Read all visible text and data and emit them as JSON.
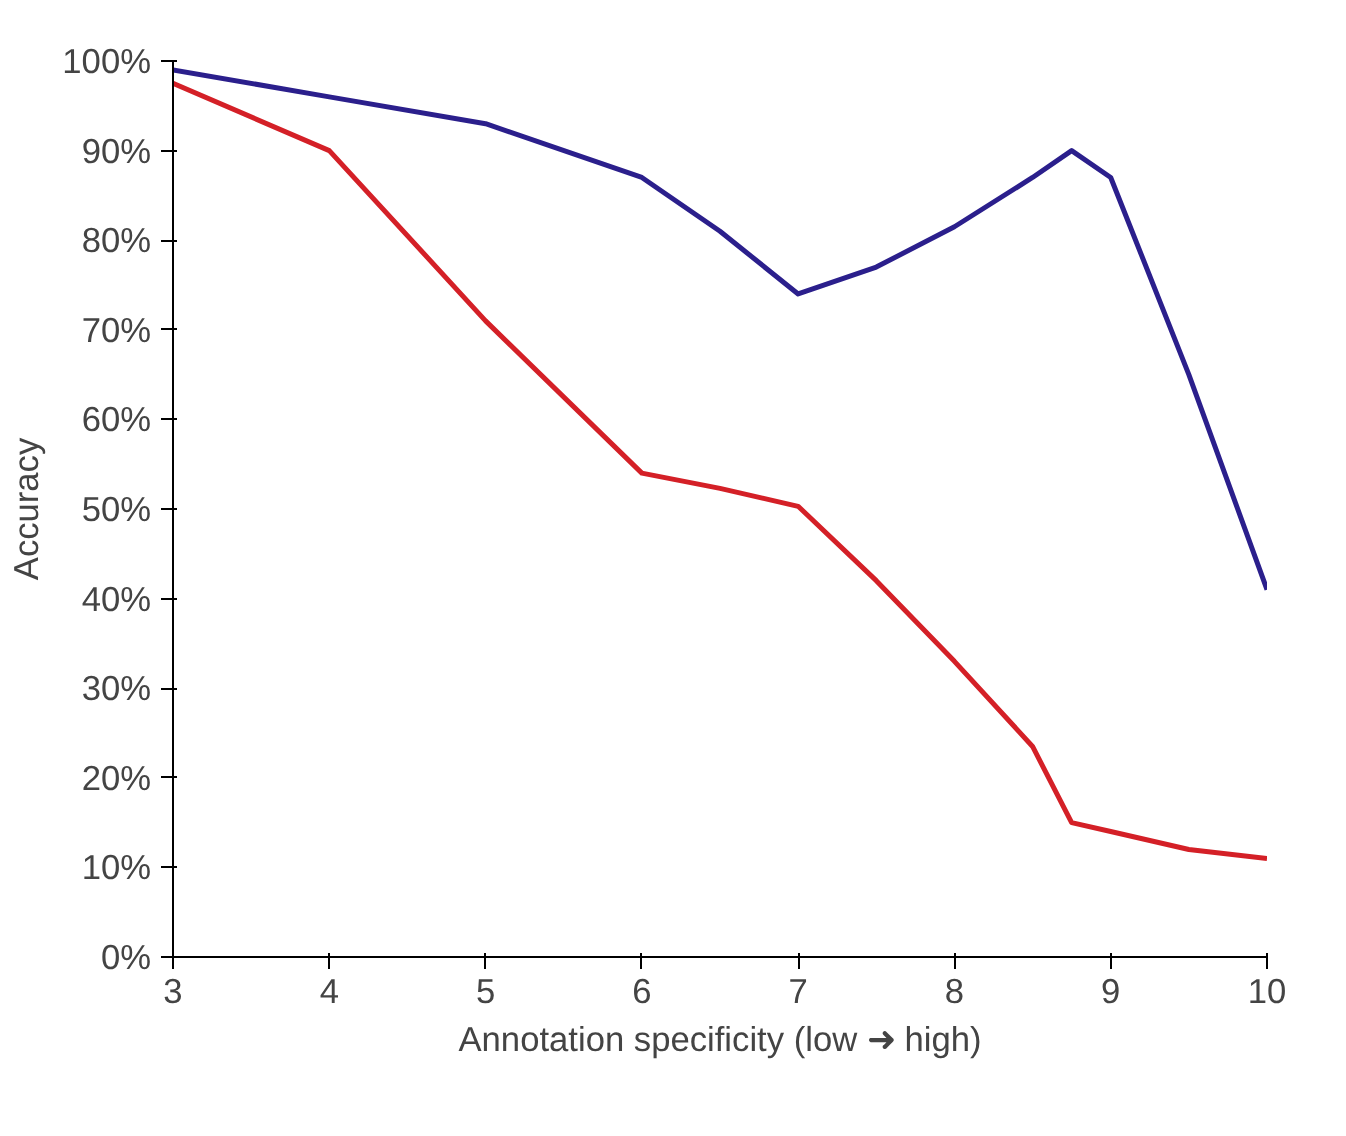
{
  "chart_data": {
    "type": "line",
    "xlabel": "Annotation specificity (low ➜ high)",
    "ylabel": "Accuracy",
    "xlim": [
      3,
      10
    ],
    "xticks": [
      3,
      4,
      5,
      6,
      7,
      8,
      9,
      10
    ],
    "ylim": [
      0,
      100
    ],
    "yticks": [
      {
        "value": 0,
        "label": "0%"
      },
      {
        "value": 10,
        "label": "10%"
      },
      {
        "value": 20,
        "label": "20%"
      },
      {
        "value": 30,
        "label": "30%"
      },
      {
        "value": 40,
        "label": "40%"
      },
      {
        "value": 50,
        "label": "50%"
      },
      {
        "value": 60,
        "label": "60%"
      },
      {
        "value": 70,
        "label": "70%"
      },
      {
        "value": 80,
        "label": "80%"
      },
      {
        "value": 90,
        "label": "90%"
      },
      {
        "value": 100,
        "label": "100%"
      }
    ],
    "grid": false,
    "marker": "none",
    "line_style": "solid",
    "x": [
      3,
      4,
      5,
      6,
      6.5,
      7,
      7.5,
      8,
      8.5,
      8.75,
      9,
      9.5,
      10
    ],
    "series": [
      {
        "color": "#2b1f8c",
        "values": [
          99,
          96,
          93,
          87,
          81,
          74,
          77,
          81.5,
          87,
          90,
          87,
          65,
          41
        ]
      },
      {
        "color": "#d42027",
        "values": [
          97.5,
          90,
          71,
          54,
          52.3,
          50.3,
          42,
          33,
          23.5,
          15,
          14,
          12,
          11
        ]
      }
    ]
  }
}
